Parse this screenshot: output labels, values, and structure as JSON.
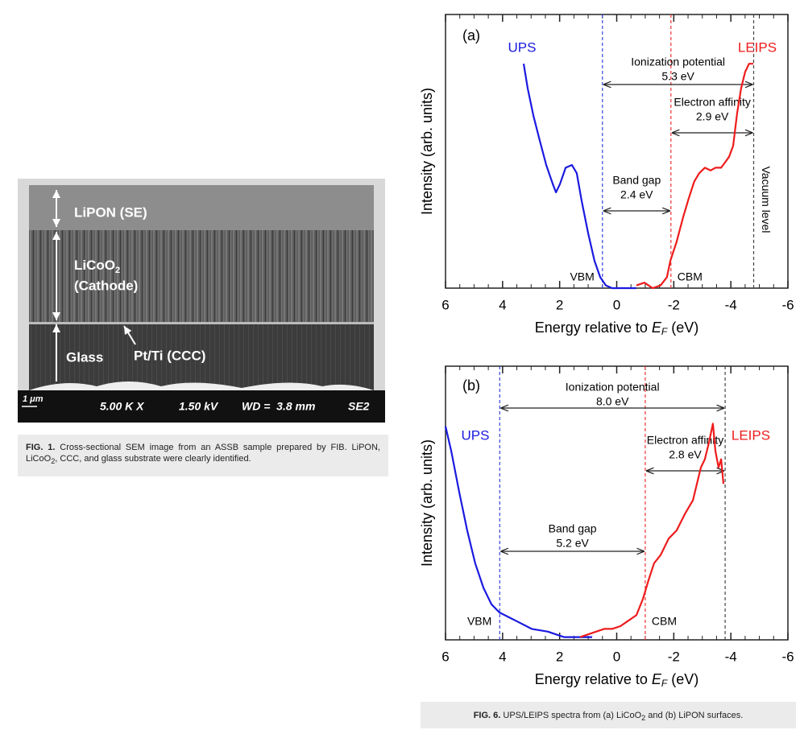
{
  "figure_1": {
    "image_labels": {
      "lipon": "LiPON (SE)",
      "cathode": {
        "text": "LiCoO",
        "subscript": "2"
      },
      "cathode_role": "(Cathode)",
      "glass": "Glass",
      "ccc": "Pt/Ti (CCC)"
    },
    "info_bar": {
      "scale_bar": "1 μm",
      "magnification": "5.00 K X",
      "voltage": "1.50 kV",
      "working_distance": "WD =  3.8 mm",
      "detector": "SE2"
    },
    "caption": {
      "label": "FIG. 1.",
      "text_before": "Cross-sectional SEM image from an ASSB sample prepared by FIB. LiPON, LiCoO",
      "subscript": "2",
      "text_after": ", CCC, and glass substrate were clearly identified."
    }
  },
  "chart_data": [
    {
      "type": "line",
      "panel_label": "(a)",
      "x_label": {
        "text": "Energy relative to ",
        "italic": "E",
        "subscript": "F",
        "unit": " (eV)"
      },
      "y_label": "Intensity (arb. units)",
      "xlim": [
        6,
        -6
      ],
      "xticks": [
        6,
        4,
        2,
        0,
        -2,
        -4,
        -6
      ],
      "ylim": [
        0,
        1
      ],
      "series": [
        {
          "name": "UPS",
          "color": "#1a1ae0",
          "x": [
            3.26,
            3.12,
            2.92,
            2.7,
            2.47,
            2.24,
            2.13,
            1.99,
            1.79,
            1.57,
            1.4,
            1.23,
            1.0,
            0.78,
            0.58,
            0.38,
            0.16,
            -0.69
          ],
          "values": [
            0.82,
            0.73,
            0.63,
            0.54,
            0.45,
            0.38,
            0.35,
            0.38,
            0.44,
            0.45,
            0.42,
            0.32,
            0.2,
            0.1,
            0.04,
            0.01,
            0.0,
            0.0
          ]
        },
        {
          "name": "LEIPS",
          "color": "#ee1c1c",
          "x": [
            -0.69,
            -0.97,
            -1.26,
            -1.54,
            -1.76,
            -1.88,
            -2.1,
            -2.33,
            -2.53,
            -2.72,
            -2.89,
            -3.09,
            -3.29,
            -3.46,
            -3.66,
            -3.8,
            -3.94,
            -4.08,
            -4.22,
            -4.36,
            -4.5,
            -4.64,
            -4.79
          ],
          "values": [
            0.01,
            0.02,
            0.0,
            0.01,
            0.04,
            0.1,
            0.17,
            0.26,
            0.33,
            0.39,
            0.42,
            0.44,
            0.43,
            0.44,
            0.44,
            0.46,
            0.48,
            0.52,
            0.64,
            0.73,
            0.79,
            0.82,
            0.82
          ]
        }
      ],
      "vlines": [
        {
          "x": 0.5,
          "label": "VBM",
          "color": "#3344dd"
        },
        {
          "x": -1.9,
          "label": "CBM",
          "color": "#ee3333"
        },
        {
          "x": -4.8,
          "label": "Vacuum level",
          "color": "#444444"
        }
      ],
      "annotations": [
        {
          "lines": [
            "Ionization potential",
            "5.3 eV"
          ],
          "from": 0.5,
          "to": -4.8
        },
        {
          "lines": [
            "Electron affinity",
            "2.9 eV"
          ],
          "from": -1.9,
          "to": -4.8
        },
        {
          "lines": [
            "Band gap",
            "2.4 eV"
          ],
          "from": 0.5,
          "to": -1.9
        }
      ]
    },
    {
      "type": "line",
      "panel_label": "(b)",
      "x_label": {
        "text": "Energy relative to ",
        "italic": "E",
        "subscript": "F",
        "unit": " (eV)"
      },
      "y_label": "Intensity (arb. units)",
      "xlim": [
        6,
        -6
      ],
      "xticks": [
        6,
        4,
        2,
        0,
        -2,
        -4,
        -6
      ],
      "ylim": [
        0,
        1
      ],
      "series": [
        {
          "name": "UPS",
          "color": "#1a1ae0",
          "x": [
            6.0,
            5.8,
            5.52,
            5.24,
            4.96,
            4.67,
            4.39,
            4.11,
            3.54,
            2.98,
            2.41,
            1.85,
            1.28,
            0.86
          ],
          "values": [
            0.78,
            0.69,
            0.54,
            0.4,
            0.28,
            0.19,
            0.13,
            0.1,
            0.07,
            0.04,
            0.03,
            0.01,
            0.01,
            0.01
          ]
        },
        {
          "name": "LEIPS",
          "color": "#ee1c1c",
          "x": [
            1.28,
            1.0,
            0.72,
            0.44,
            0.16,
            -0.13,
            -0.41,
            -0.69,
            -0.92,
            -1.12,
            -1.31,
            -1.54,
            -1.82,
            -2.1,
            -2.39,
            -2.67,
            -2.81,
            -2.95,
            -3.09,
            -3.23,
            -3.37,
            -3.46,
            -3.57,
            -3.66,
            -3.74
          ],
          "values": [
            0.01,
            0.02,
            0.03,
            0.04,
            0.04,
            0.05,
            0.07,
            0.09,
            0.15,
            0.22,
            0.28,
            0.31,
            0.37,
            0.4,
            0.46,
            0.51,
            0.57,
            0.63,
            0.66,
            0.72,
            0.79,
            0.69,
            0.63,
            0.66,
            0.57
          ]
        }
      ],
      "vlines": [
        {
          "x": 4.1,
          "label": "VBM",
          "color": "#3344dd"
        },
        {
          "x": -1.0,
          "label": "CBM",
          "color": "#ee3333"
        },
        {
          "x": -3.8,
          "color": "#444444"
        }
      ],
      "annotations": [
        {
          "lines": [
            "Ionization potential",
            "8.0 eV"
          ],
          "from": 4.1,
          "to": -3.8
        },
        {
          "lines": [
            "Electron affinity",
            "2.8 eV"
          ],
          "from": -1.0,
          "to": -3.8
        },
        {
          "lines": [
            "Band gap",
            "5.2 eV"
          ],
          "from": 4.1,
          "to": -1.0
        }
      ]
    }
  ],
  "figure_6_caption": {
    "label": "FIG. 6.",
    "text_before": "UPS/LEIPS spectra from (a) LiCoO",
    "subscript": "2",
    "text_after": " and (b) LiPON surfaces."
  }
}
